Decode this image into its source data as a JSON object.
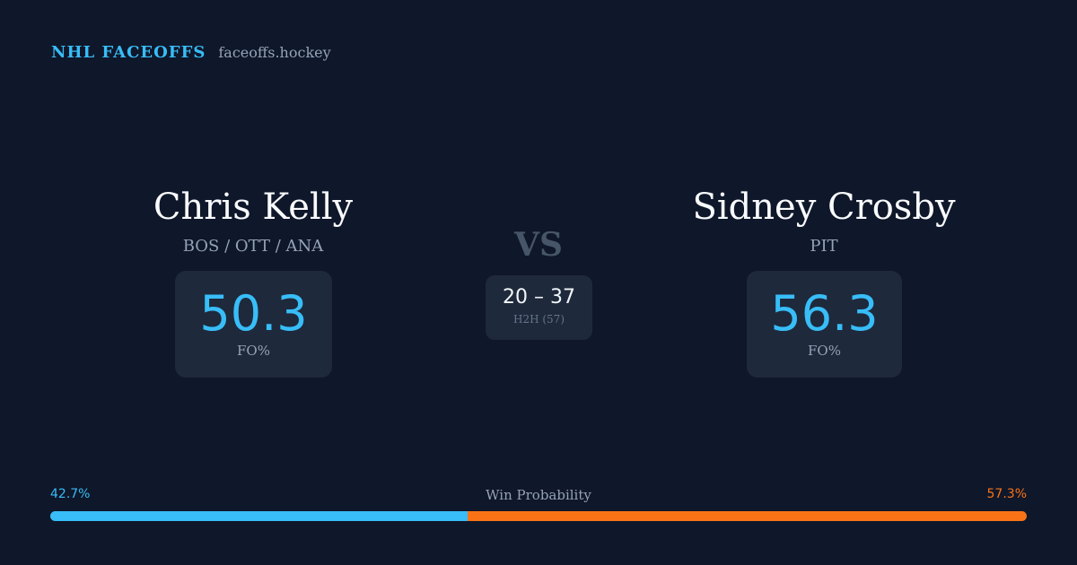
{
  "brand": {
    "title": "NHL FACEOFFS",
    "domain": "faceoffs.hockey"
  },
  "left_player": {
    "name": "Chris Kelly",
    "teams": "BOS / OTT / ANA",
    "fo_value": "50.3",
    "fo_label": "FO%"
  },
  "right_player": {
    "name": "Sidney Crosby",
    "teams": "PIT",
    "fo_value": "56.3",
    "fo_label": "FO%"
  },
  "matchup": {
    "vs_label": "VS",
    "h2h_score": "20 – 37",
    "h2h_label": "H2H (57)"
  },
  "win_probability": {
    "title": "Win Probability",
    "left_label": "42.7%",
    "right_label": "57.3%",
    "left_fraction": 0.427,
    "right_fraction": 0.573
  },
  "colors": {
    "background": "#0f172a",
    "card": "#1e293b",
    "accent_blue": "#38bdf8",
    "accent_orange": "#f97316",
    "muted_text": "#94a3b8"
  }
}
